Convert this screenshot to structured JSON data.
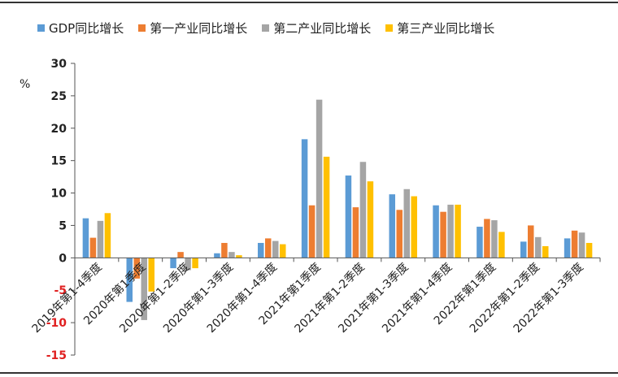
{
  "chart_data": {
    "type": "bar",
    "ylabel": "%",
    "ylim": [
      -15,
      30
    ],
    "yticks": [
      -15,
      -10,
      -5,
      0,
      5,
      10,
      15,
      20,
      25,
      30
    ],
    "grid": false,
    "legend_position": "top",
    "categories": [
      "2019年第1-4季度",
      "2020年第1季度",
      "2020年第1-2季度",
      "2020年第1-3季度",
      "2020年第1-4季度",
      "2021年第1季度",
      "2021年第1-2季度",
      "2021年第1-3季度",
      "2021年第1-4季度",
      "2022年第1季度",
      "2022年第1-2季度",
      "2022年第1-3季度"
    ],
    "series": [
      {
        "name": "GDP同比增长",
        "color": "#5B9BD5",
        "values": [
          6.1,
          -6.8,
          -1.6,
          0.7,
          2.3,
          18.3,
          12.7,
          9.8,
          8.1,
          4.8,
          2.5,
          3.0
        ]
      },
      {
        "name": "第一产业同比增长",
        "color": "#ED7D31",
        "values": [
          3.1,
          -3.2,
          0.9,
          2.3,
          3.0,
          8.1,
          7.8,
          7.4,
          7.1,
          6.0,
          5.0,
          4.2
        ]
      },
      {
        "name": "第二产业同比增长",
        "color": "#A5A5A5",
        "values": [
          5.7,
          -9.6,
          -1.9,
          0.9,
          2.6,
          24.4,
          14.8,
          10.6,
          8.2,
          5.8,
          3.2,
          3.9
        ]
      },
      {
        "name": "第三产业同比增长",
        "color": "#FFC000",
        "values": [
          6.9,
          -5.2,
          -1.6,
          0.4,
          2.1,
          15.6,
          11.8,
          9.5,
          8.2,
          4.0,
          1.8,
          2.3
        ]
      }
    ]
  }
}
